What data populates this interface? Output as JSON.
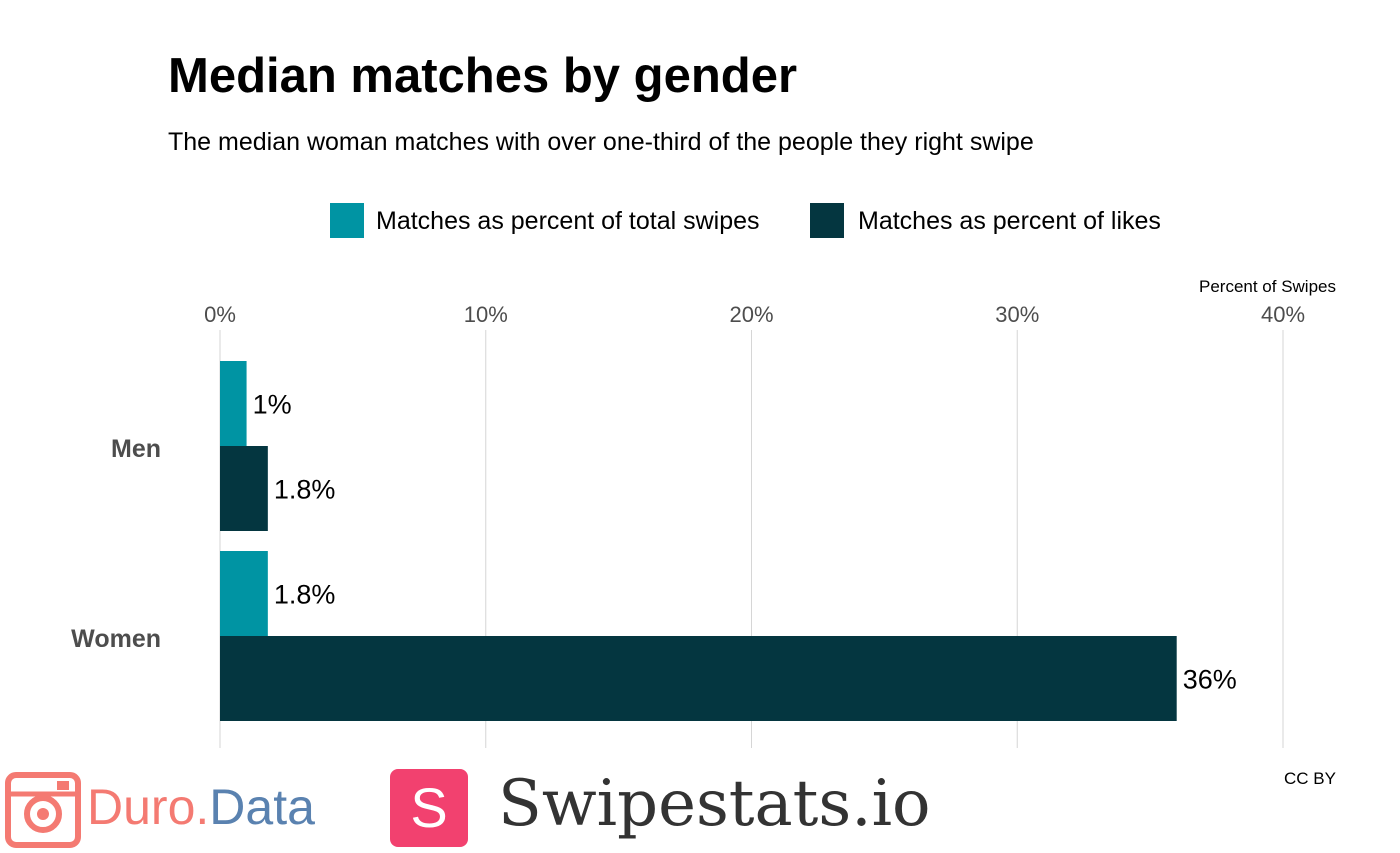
{
  "chart_data": {
    "type": "bar",
    "orientation": "horizontal",
    "title": "Median matches by gender",
    "subtitle": "The median woman matches with over one-third of the people they right swipe",
    "xlabel": "Percent of Swipes",
    "ylabel": "",
    "xlim": [
      0,
      40
    ],
    "x_ticks": [
      0,
      10,
      20,
      30,
      40
    ],
    "x_tick_labels": [
      "0%",
      "10%",
      "20%",
      "30%",
      "40%"
    ],
    "grid": "vertical",
    "legend_position": "top",
    "categories": [
      "Men",
      "Women"
    ],
    "series": [
      {
        "name": "Matches as percent of total swipes",
        "color": "#0094a3",
        "values": [
          1.0,
          1.8
        ],
        "labels": [
          "1%",
          "1.8%"
        ]
      },
      {
        "name": "Matches as percent of likes",
        "color": "#043640",
        "values": [
          1.8,
          36.0
        ],
        "labels": [
          "1.8%",
          "36%"
        ]
      }
    ],
    "caption": "CC BY"
  },
  "logos": {
    "duro_part1": "Duro",
    "duro_dot": ".",
    "duro_part2": "Data",
    "duro_color": "#f47a72",
    "duro_data_color": "#5a82b0",
    "swipestats_letter": "S",
    "swipestats_text": "Swipestats.io",
    "swipestats_color": "#f2416f"
  }
}
